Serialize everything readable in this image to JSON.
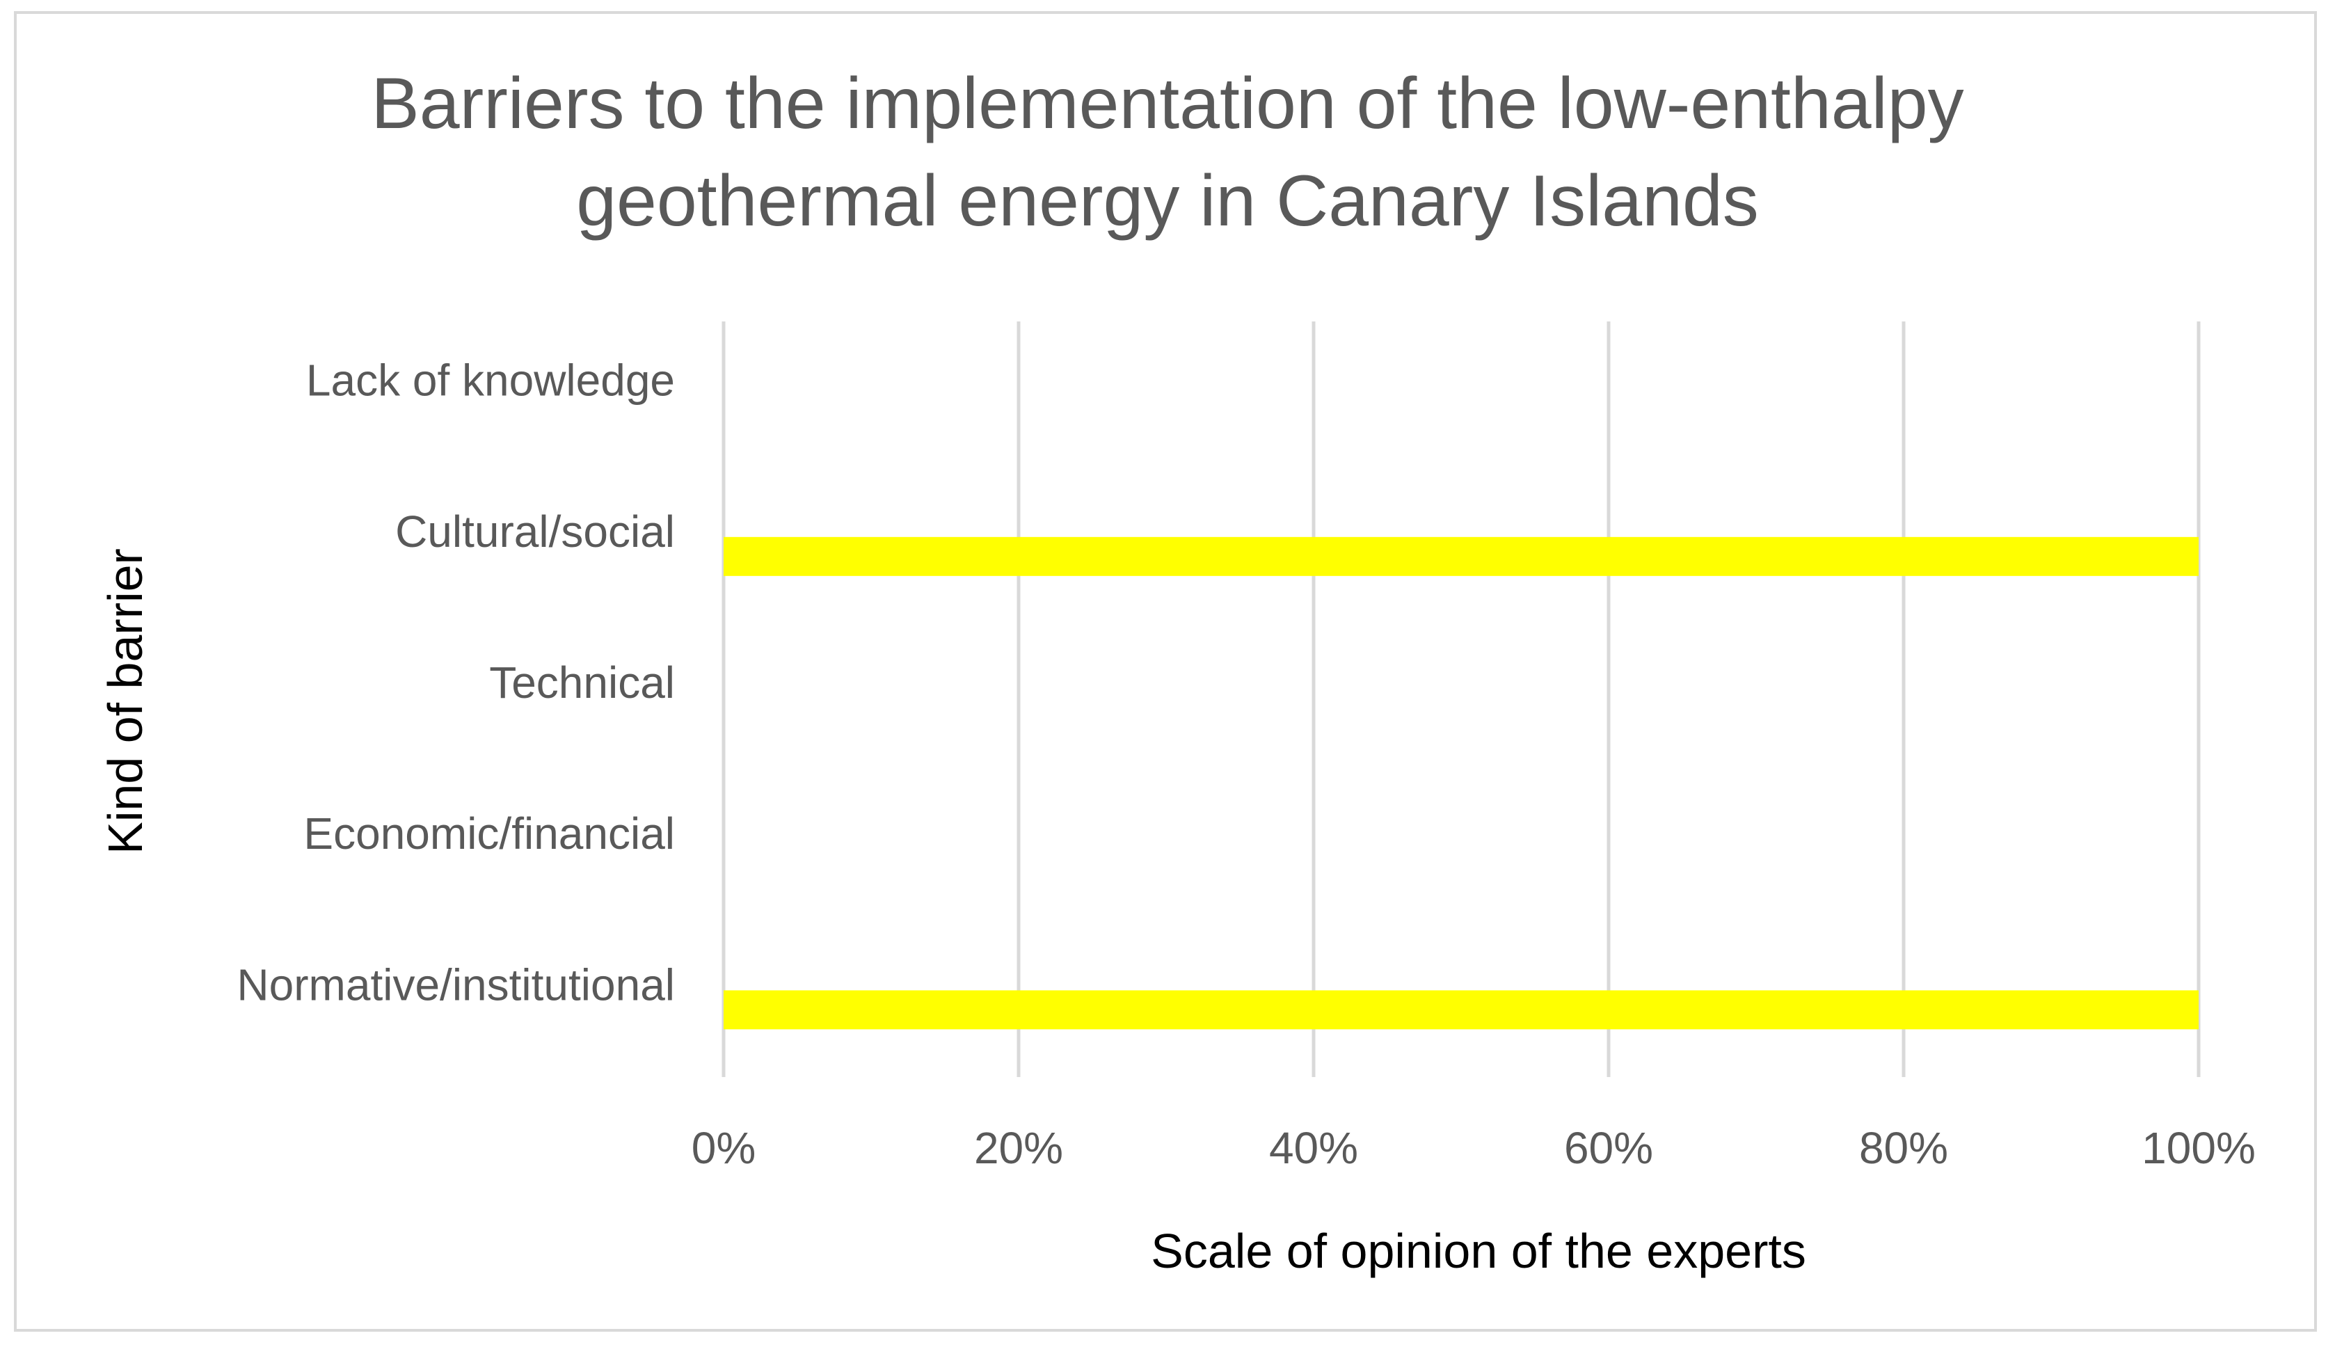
{
  "chart_data": {
    "type": "bar",
    "orientation": "horizontal",
    "title": "Barriers to the implementation of the low-enthalpy geothermal energy in Canary Islands",
    "title_lines": [
      "Barriers to the implementation of the low-enthalpy",
      "geothermal energy in Canary Islands"
    ],
    "xlabel": "Scale of opinion of the experts",
    "ylabel": "Kind of barrier",
    "categories": [
      "Normative/institutional",
      "Economic/financial",
      "Technical",
      "Cultural/social",
      "Lack of knowledge"
    ],
    "values": [
      1.0,
      0,
      0,
      1.0,
      0
    ],
    "xlim": [
      0,
      1
    ],
    "x_ticks": [
      0,
      0.2,
      0.4,
      0.6,
      0.8,
      1.0
    ],
    "x_tick_labels": [
      "0%",
      "20%",
      "40%",
      "60%",
      "80%",
      "100%"
    ],
    "grid": true,
    "legend": "none",
    "colors": {
      "bar": "#ffff00",
      "grid": "#d9d9d9",
      "text": "#595959",
      "axis_title": "#000000",
      "border": "#d9d9d9"
    }
  }
}
